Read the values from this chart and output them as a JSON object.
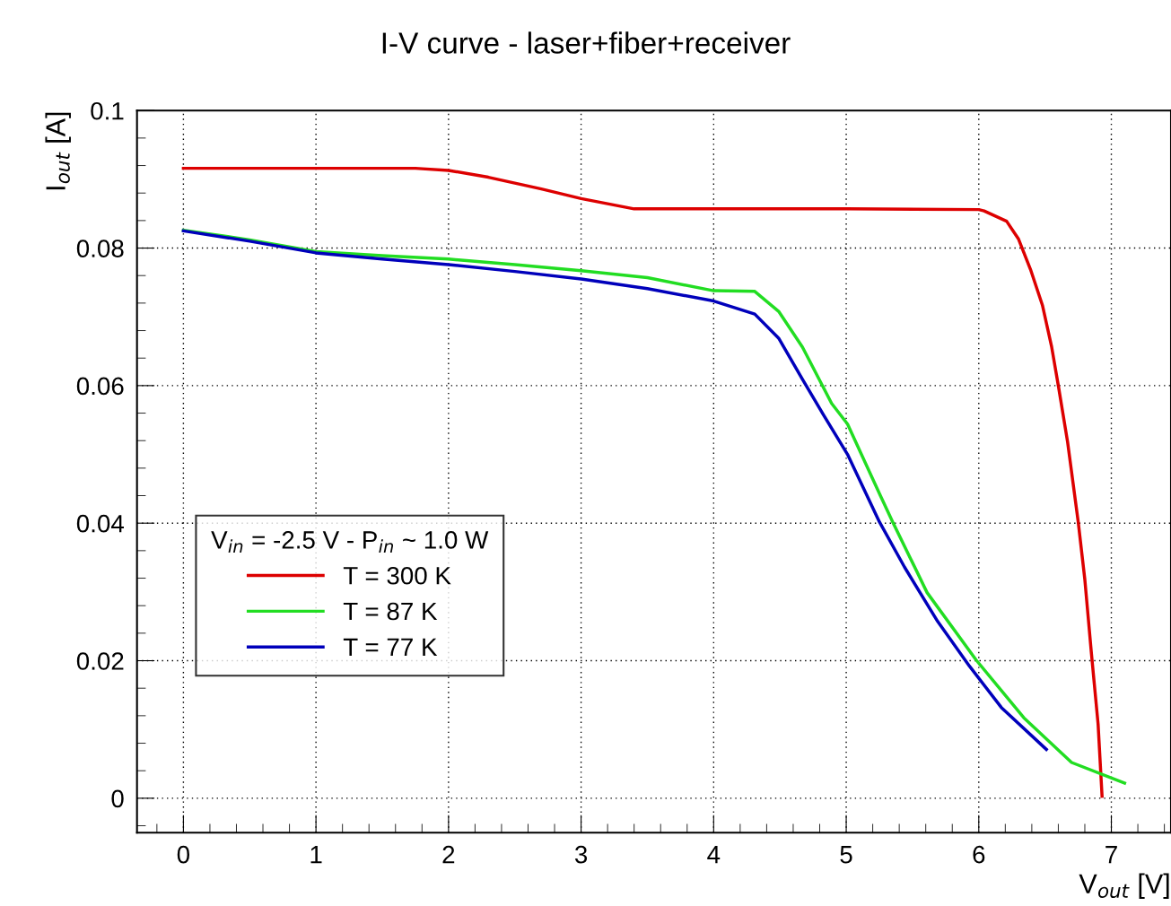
{
  "chart_data": {
    "type": "line",
    "title": "I-V curve - laser+fiber+receiver",
    "xlabel": "V$_{out}$ [V]",
    "ylabel": "I$_{out}$ [A]",
    "legend_title": "V$_{in}$ = -2.5 V - P$_{in}$ ~ 1.0 W",
    "xlim": [
      -0.35,
      7.45
    ],
    "ylim": [
      -0.005,
      0.1
    ],
    "xticks": [
      0,
      1,
      2,
      3,
      4,
      5,
      6,
      7
    ],
    "yticks": [
      0,
      0.02,
      0.04,
      0.06,
      0.08,
      0.1
    ],
    "grid": true,
    "legend": "bottom left",
    "line_style": "solid",
    "marker": "none",
    "series": [
      {
        "name": "T = 300 K",
        "color": "#dd0000",
        "x": [
          0,
          1.0,
          1.75,
          2.0,
          2.3,
          2.7,
          3.0,
          3.4,
          4.0,
          5.0,
          6.0,
          6.04,
          6.21,
          6.3,
          6.39,
          6.48,
          6.55,
          6.6,
          6.67,
          6.75,
          6.8,
          6.85,
          6.9,
          6.93
        ],
        "values": [
          0.0916,
          0.0916,
          0.0916,
          0.0913,
          0.0903,
          0.0886,
          0.0872,
          0.0857,
          0.0857,
          0.0857,
          0.0856,
          0.0854,
          0.0839,
          0.0813,
          0.0769,
          0.0717,
          0.0656,
          0.06,
          0.0518,
          0.0402,
          0.0318,
          0.021,
          0.0108,
          0.0003
        ]
      },
      {
        "name": "T = 87 K",
        "color": "#22dd22",
        "x": [
          0,
          0.5,
          1.0,
          1.5,
          2.0,
          2.5,
          3.0,
          3.5,
          4.0,
          4.31,
          4.49,
          4.67,
          4.89,
          5.01,
          5.26,
          5.35,
          5.61,
          5.98,
          6.34,
          6.7,
          7.1
        ],
        "values": [
          0.0826,
          0.0812,
          0.0795,
          0.0789,
          0.0784,
          0.0776,
          0.0767,
          0.0757,
          0.0738,
          0.0737,
          0.0708,
          0.0656,
          0.0574,
          0.0544,
          0.0439,
          0.0402,
          0.0299,
          0.0201,
          0.0117,
          0.0052,
          0.0022
        ]
      },
      {
        "name": "T = 77 K",
        "color": "#0000bb",
        "x": [
          0,
          0.5,
          1.0,
          1.5,
          2.0,
          2.5,
          3.0,
          3.5,
          4.0,
          4.31,
          4.49,
          4.67,
          4.83,
          5.01,
          5.25,
          5.44,
          5.69,
          5.93,
          6.17,
          6.51
        ],
        "values": [
          0.0825,
          0.081,
          0.0793,
          0.0784,
          0.0776,
          0.0766,
          0.0755,
          0.0741,
          0.0723,
          0.0704,
          0.0669,
          0.0609,
          0.0557,
          0.05,
          0.0402,
          0.0336,
          0.0257,
          0.0192,
          0.0132,
          0.0071
        ]
      }
    ]
  }
}
